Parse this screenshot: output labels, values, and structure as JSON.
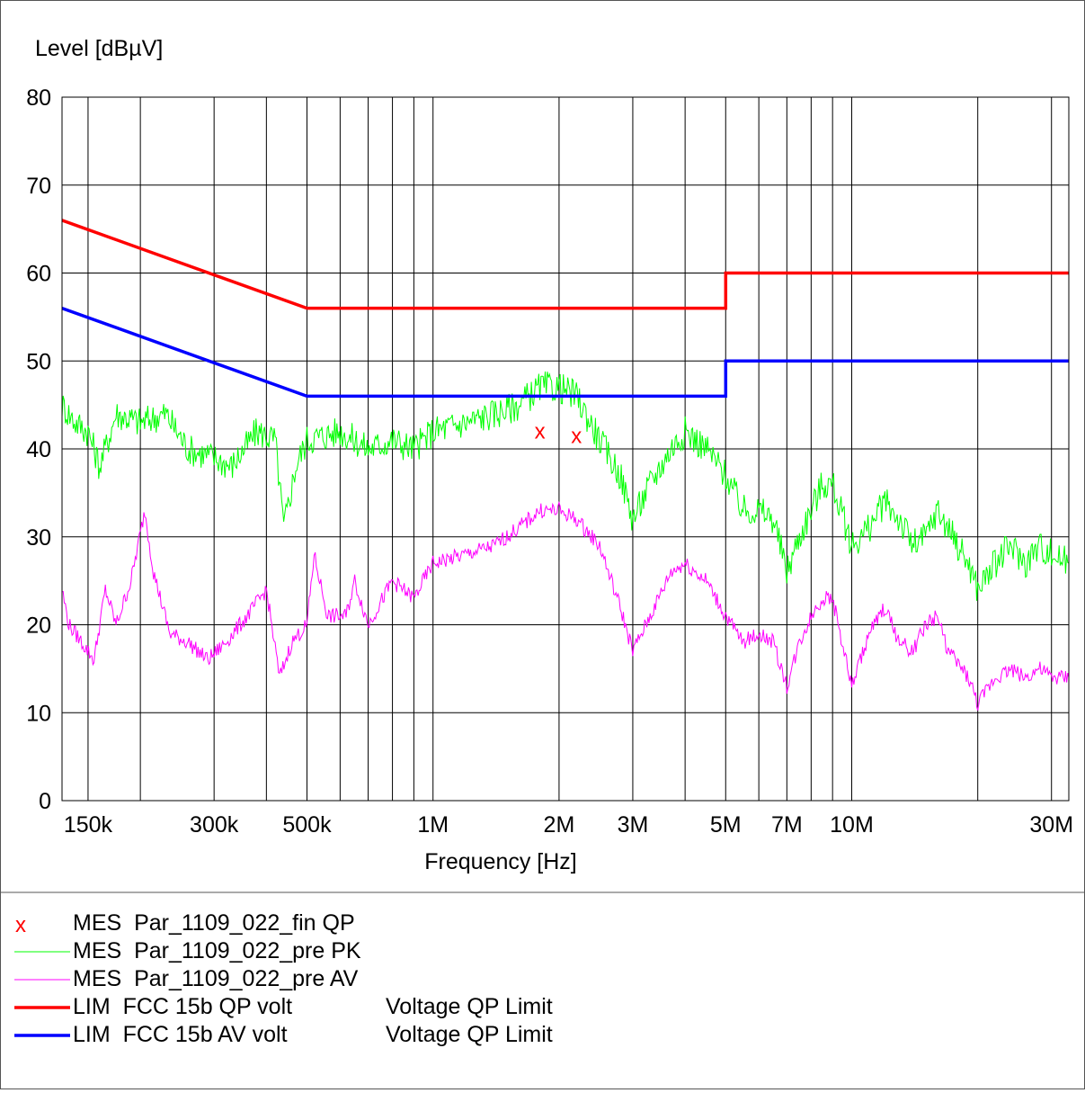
{
  "chart_data": {
    "type": "line",
    "ylabel": "Level [dBµV]",
    "xlabel": "Frequency [Hz]",
    "x_scale": "log",
    "xlim": [
      130000,
      33000000
    ],
    "ylim": [
      0,
      80
    ],
    "grid": true,
    "y_ticks": [
      0,
      10,
      20,
      30,
      40,
      50,
      60,
      70,
      80
    ],
    "x_ticks": [
      {
        "value": 150000,
        "label": "150k"
      },
      {
        "value": 300000,
        "label": "300k"
      },
      {
        "value": 500000,
        "label": "500k"
      },
      {
        "value": 1000000,
        "label": "1M"
      },
      {
        "value": 2000000,
        "label": "2M"
      },
      {
        "value": 3000000,
        "label": "3M"
      },
      {
        "value": 5000000,
        "label": "5M"
      },
      {
        "value": 7000000,
        "label": "7M"
      },
      {
        "value": 10000000,
        "label": "10M"
      },
      {
        "value": 30000000,
        "label": "30M"
      }
    ],
    "x_gridlines": [
      200000,
      400000,
      600000,
      700000,
      800000,
      900000,
      4000000,
      6000000,
      8000000,
      9000000,
      20000000
    ],
    "series": [
      {
        "name": "MES  Par_1109_022_fin QP",
        "kind": "marker",
        "color": "#ff0000",
        "points": [
          [
            1800000,
            42
          ],
          [
            2200000,
            41.5
          ]
        ]
      },
      {
        "name": "MES  Par_1109_022_pre PK",
        "kind": "trace",
        "color": "#00ff00",
        "points": [
          [
            130000,
            45
          ],
          [
            140000,
            43
          ],
          [
            150000,
            42
          ],
          [
            160000,
            38
          ],
          [
            175000,
            44
          ],
          [
            200000,
            43
          ],
          [
            230000,
            44
          ],
          [
            260000,
            40
          ],
          [
            300000,
            39
          ],
          [
            330000,
            38
          ],
          [
            380000,
            42
          ],
          [
            420000,
            41
          ],
          [
            440000,
            31
          ],
          [
            470000,
            38
          ],
          [
            500000,
            41
          ],
          [
            600000,
            42
          ],
          [
            700000,
            40
          ],
          [
            800000,
            41
          ],
          [
            900000,
            40
          ],
          [
            1000000,
            42
          ],
          [
            1200000,
            43
          ],
          [
            1400000,
            44
          ],
          [
            1600000,
            45
          ],
          [
            1800000,
            47
          ],
          [
            2000000,
            47
          ],
          [
            2200000,
            46
          ],
          [
            2500000,
            41
          ],
          [
            2800000,
            37
          ],
          [
            3000000,
            32
          ],
          [
            3300000,
            36
          ],
          [
            3700000,
            40
          ],
          [
            4000000,
            42
          ],
          [
            4500000,
            40
          ],
          [
            5000000,
            37
          ],
          [
            5500000,
            33
          ],
          [
            6000000,
            33
          ],
          [
            6500000,
            32
          ],
          [
            7000000,
            26
          ],
          [
            7500000,
            30
          ],
          [
            8000000,
            33
          ],
          [
            8500000,
            36
          ],
          [
            9000000,
            36
          ],
          [
            10000000,
            29
          ],
          [
            11000000,
            31
          ],
          [
            12000000,
            34
          ],
          [
            13000000,
            32
          ],
          [
            14000000,
            29
          ],
          [
            15000000,
            30
          ],
          [
            16000000,
            33
          ],
          [
            17000000,
            31
          ],
          [
            19000000,
            27
          ],
          [
            20000000,
            24
          ],
          [
            22000000,
            27
          ],
          [
            24000000,
            29
          ],
          [
            26000000,
            27
          ],
          [
            28000000,
            29
          ],
          [
            30000000,
            28
          ],
          [
            33000000,
            27
          ]
        ]
      },
      {
        "name": "MES  Par_1109_022_pre AV",
        "kind": "trace",
        "color": "#ff00ff",
        "points": [
          [
            130000,
            24
          ],
          [
            135000,
            20
          ],
          [
            145000,
            18
          ],
          [
            155000,
            16
          ],
          [
            165000,
            24
          ],
          [
            175000,
            20
          ],
          [
            190000,
            25
          ],
          [
            205000,
            33
          ],
          [
            215000,
            26
          ],
          [
            235000,
            19
          ],
          [
            260000,
            18
          ],
          [
            290000,
            16
          ],
          [
            320000,
            18
          ],
          [
            360000,
            21
          ],
          [
            400000,
            24
          ],
          [
            430000,
            14
          ],
          [
            460000,
            18
          ],
          [
            500000,
            20
          ],
          [
            520000,
            28
          ],
          [
            560000,
            21
          ],
          [
            620000,
            21
          ],
          [
            650000,
            25
          ],
          [
            700000,
            20
          ],
          [
            800000,
            25
          ],
          [
            900000,
            23
          ],
          [
            1000000,
            27
          ],
          [
            1200000,
            28
          ],
          [
            1400000,
            29
          ],
          [
            1600000,
            31
          ],
          [
            1800000,
            33
          ],
          [
            2000000,
            33
          ],
          [
            2200000,
            32
          ],
          [
            2500000,
            29
          ],
          [
            2800000,
            22
          ],
          [
            3000000,
            17
          ],
          [
            3300000,
            21
          ],
          [
            3700000,
            26
          ],
          [
            4000000,
            27
          ],
          [
            4500000,
            25
          ],
          [
            5000000,
            21
          ],
          [
            5500000,
            18
          ],
          [
            6000000,
            19
          ],
          [
            6500000,
            18
          ],
          [
            7000000,
            13
          ],
          [
            7500000,
            18
          ],
          [
            8000000,
            21
          ],
          [
            8500000,
            23
          ],
          [
            9000000,
            23
          ],
          [
            10000000,
            13
          ],
          [
            11000000,
            19
          ],
          [
            12000000,
            22
          ],
          [
            13000000,
            18
          ],
          [
            14000000,
            17
          ],
          [
            15000000,
            20
          ],
          [
            16000000,
            21
          ],
          [
            17000000,
            17
          ],
          [
            19000000,
            14
          ],
          [
            20000000,
            11
          ],
          [
            22000000,
            14
          ],
          [
            24000000,
            15
          ],
          [
            26000000,
            14
          ],
          [
            28000000,
            15
          ],
          [
            30000000,
            14
          ],
          [
            33000000,
            14
          ]
        ]
      },
      {
        "name": "LIM  FCC 15b QP volt",
        "description": "Voltage QP Limit",
        "kind": "limit",
        "color": "#ff0000",
        "points": [
          [
            130000,
            66
          ],
          [
            500000,
            56
          ],
          [
            5000000,
            56
          ],
          [
            5000000,
            60
          ],
          [
            33000000,
            60
          ]
        ]
      },
      {
        "name": "LIM  FCC 15b AV volt",
        "description": "Voltage QP Limit",
        "kind": "limit",
        "color": "#0000ff",
        "points": [
          [
            130000,
            56
          ],
          [
            500000,
            46
          ],
          [
            5000000,
            46
          ],
          [
            5000000,
            50
          ],
          [
            33000000,
            50
          ]
        ]
      }
    ]
  },
  "legend": [
    {
      "symbol": "x",
      "label": "MES  Par_1109_022_fin QP",
      "description": ""
    },
    {
      "symbol": "",
      "label": "MES  Par_1109_022_pre PK",
      "description": ""
    },
    {
      "symbol": "",
      "label": "MES  Par_1109_022_pre AV",
      "description": ""
    },
    {
      "symbol": "",
      "label": "LIM  FCC 15b QP volt",
      "description": "Voltage QP Limit"
    },
    {
      "symbol": "",
      "label": "LIM  FCC 15b AV volt",
      "description": "Voltage QP Limit"
    }
  ]
}
